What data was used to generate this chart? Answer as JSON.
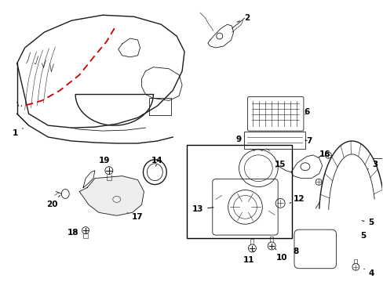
{
  "background_color": "#ffffff",
  "line_color": "#1a1a1a",
  "red_dash_color": "#cc0000",
  "fig_width": 4.89,
  "fig_height": 3.6,
  "dpi": 100,
  "label_fontsize": 7.5
}
